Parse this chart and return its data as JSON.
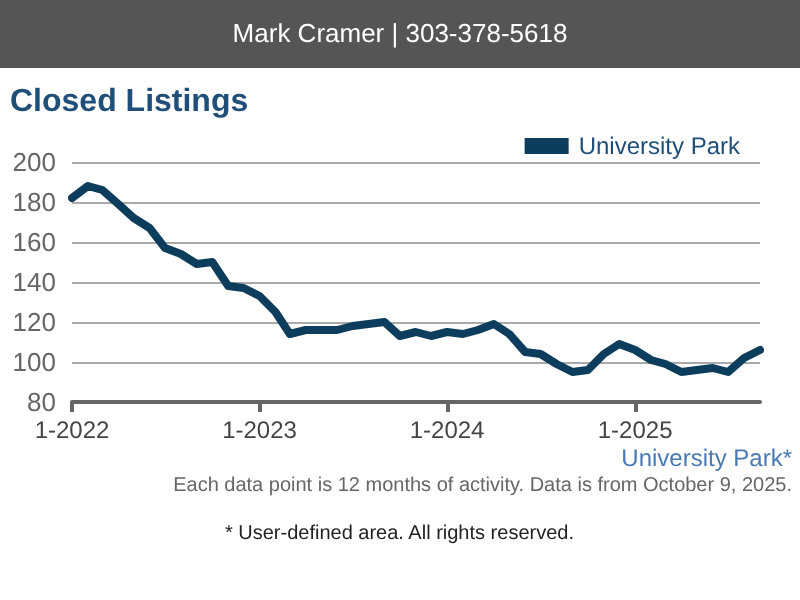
{
  "chart_data": {
    "type": "line",
    "title": "Closed Listings",
    "x": [
      "2022-01",
      "2022-02",
      "2022-03",
      "2022-04",
      "2022-05",
      "2022-06",
      "2022-07",
      "2022-08",
      "2022-09",
      "2022-10",
      "2022-11",
      "2022-12",
      "2023-01",
      "2023-02",
      "2023-03",
      "2023-04",
      "2023-05",
      "2023-06",
      "2023-07",
      "2023-08",
      "2023-09",
      "2023-10",
      "2023-11",
      "2023-12",
      "2024-01",
      "2024-02",
      "2024-03",
      "2024-04",
      "2024-05",
      "2024-06",
      "2024-07",
      "2024-08",
      "2024-09",
      "2024-10",
      "2024-11",
      "2024-12",
      "2025-01",
      "2025-02",
      "2025-03",
      "2025-04",
      "2025-05",
      "2025-06",
      "2025-07",
      "2025-08",
      "2025-09"
    ],
    "series": [
      {
        "name": "University Park",
        "color": "#0d3d5c",
        "values": [
          182,
          188,
          186,
          179,
          172,
          167,
          157,
          154,
          149,
          150,
          138,
          137,
          133,
          125,
          114,
          116,
          116,
          116,
          118,
          119,
          120,
          113,
          115,
          113,
          115,
          114,
          116,
          119,
          114,
          105,
          104,
          99,
          95,
          96,
          104,
          109,
          106,
          101,
          99,
          95,
          96,
          97,
          95,
          102,
          106
        ]
      }
    ],
    "xlim": [
      "2022-01",
      "2025-09"
    ],
    "xticks": [
      {
        "value": "2022-01",
        "label": "1-2022"
      },
      {
        "value": "2023-01",
        "label": "1-2023"
      },
      {
        "value": "2024-01",
        "label": "1-2024"
      },
      {
        "value": "2025-01",
        "label": "1-2025"
      }
    ],
    "ylim": [
      80,
      200
    ],
    "yticks": [
      80,
      100,
      120,
      140,
      160,
      180,
      200
    ],
    "grid": "y",
    "legend": "top right",
    "marker": "none",
    "line_style": "solid",
    "annotations": [
      "Mark Cramer | 303-378-5618",
      "University Park*",
      "Each data point is 12 months of activity. Data is from October 9, 2025.",
      "* User-defined area. All rights reserved."
    ]
  }
}
